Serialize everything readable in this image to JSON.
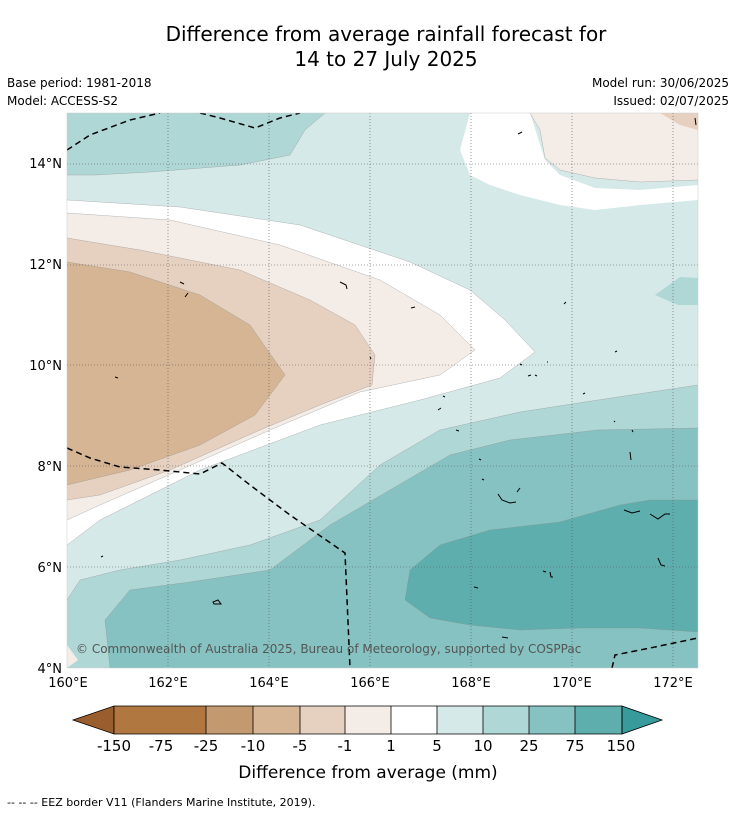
{
  "title": {
    "line1": "Difference from average rainfall forecast for",
    "line2": "14 to 27 July 2025"
  },
  "info": {
    "base_period": "Base period: 1981-2018",
    "model": "Model: ACCESS-S2",
    "model_run": "Model run: 30/06/2025",
    "issued": "Issued: 02/07/2025"
  },
  "map": {
    "lat_labels": [
      "14°N",
      "12°N",
      "10°N",
      "8°N",
      "6°N",
      "4°N"
    ],
    "lon_labels": [
      "160°E",
      "162°E",
      "164°E",
      "166°E",
      "168°E",
      "170°E",
      "172°E"
    ],
    "copyright": "© Commonwealth of Australia 2025, Bureau of Meteorology, supported by COSPPac",
    "colors": {
      "dry_extreme": "#9a5d2c",
      "dry_75": "#b07840",
      "dry_25": "#c39a70",
      "dry_10": "#d5b594",
      "dry_5": "#e6d0bf",
      "dry_1": "#f4ece7",
      "neutral": "#ffffff",
      "wet_1": "#d5e9e8",
      "wet_5": "#afd7d6",
      "wet_10": "#86c2c1",
      "wet_25": "#5eaeae",
      "wet_75": "#379b9b",
      "wet_extreme": "#2a7f7f"
    }
  },
  "colorbar": {
    "labels": [
      "-150",
      "-75",
      "-25",
      "-10",
      "-5",
      "-1",
      "1",
      "5",
      "10",
      "25",
      "75",
      "150"
    ],
    "title": "Difference from average (mm)"
  },
  "footer": "--  --  -- EEZ border V11 (Flanders Marine Institute, 2019)."
}
